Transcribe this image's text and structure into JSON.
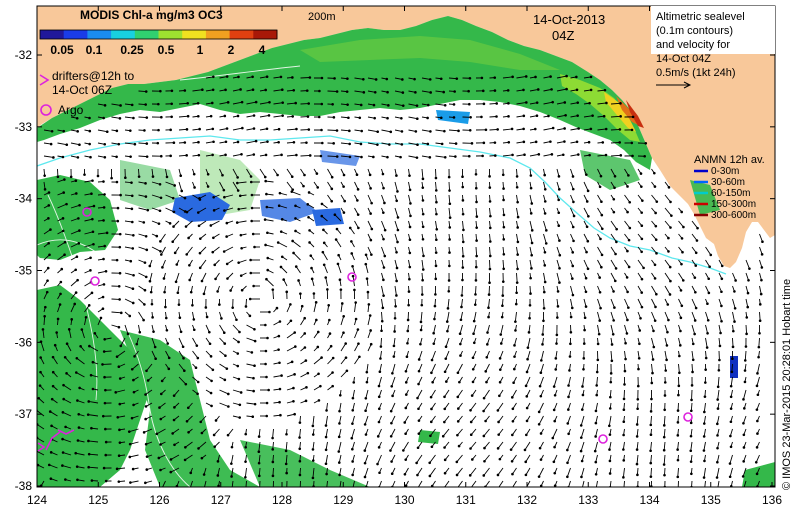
{
  "colorbar": {
    "title": "MODIS Chl-a mg/m3 OC3",
    "ticks": [
      "0.05",
      "0.1",
      "0.25",
      "0.5",
      "1",
      "2",
      "4"
    ],
    "colors": [
      "#20189a",
      "#1a3ce8",
      "#1a8cf0",
      "#18d0e0",
      "#30d070",
      "#9ee030",
      "#f0e020",
      "#f0a020",
      "#e04010",
      "#a81808"
    ]
  },
  "contour_label": "200m",
  "date_title": "14-Oct-2013",
  "time_title": "04Z",
  "drifter_legend": [
    "drifters@12h to",
    "14-Oct 06Z"
  ],
  "argo_legend": "Argo",
  "altimetry_box": [
    "Altimetric sealevel",
    "(0.1m contours)",
    "and velocity for",
    "14-Oct 04Z",
    "0.5m/s (1kt 24h)"
  ],
  "anmn": {
    "title": "ANMN 12h av.",
    "items": [
      {
        "label": "0-30m",
        "color": "#0000cc"
      },
      {
        "label": "30-60m",
        "color": "#0066ff"
      },
      {
        "label": "60-150m",
        "color": "#00cccc"
      },
      {
        "label": "150-300m",
        "color": "#cc0000"
      },
      {
        "label": "300-600m",
        "color": "#880000"
      }
    ]
  },
  "credit": "© IMOS 23-Mar-2015 20:28:01 Hobart time",
  "x_ticks": [
    "124",
    "125",
    "126",
    "127",
    "128",
    "129",
    "130",
    "131",
    "132",
    "133",
    "134",
    "135",
    "136"
  ],
  "y_ticks": [
    "-32",
    "-33",
    "-34",
    "-35",
    "-36",
    "-37",
    "-38"
  ],
  "colors": {
    "land": "#f8c89a",
    "bathy": "#5ee8ee",
    "argo": "#dd22dd",
    "drifter": "#dd22dd"
  }
}
